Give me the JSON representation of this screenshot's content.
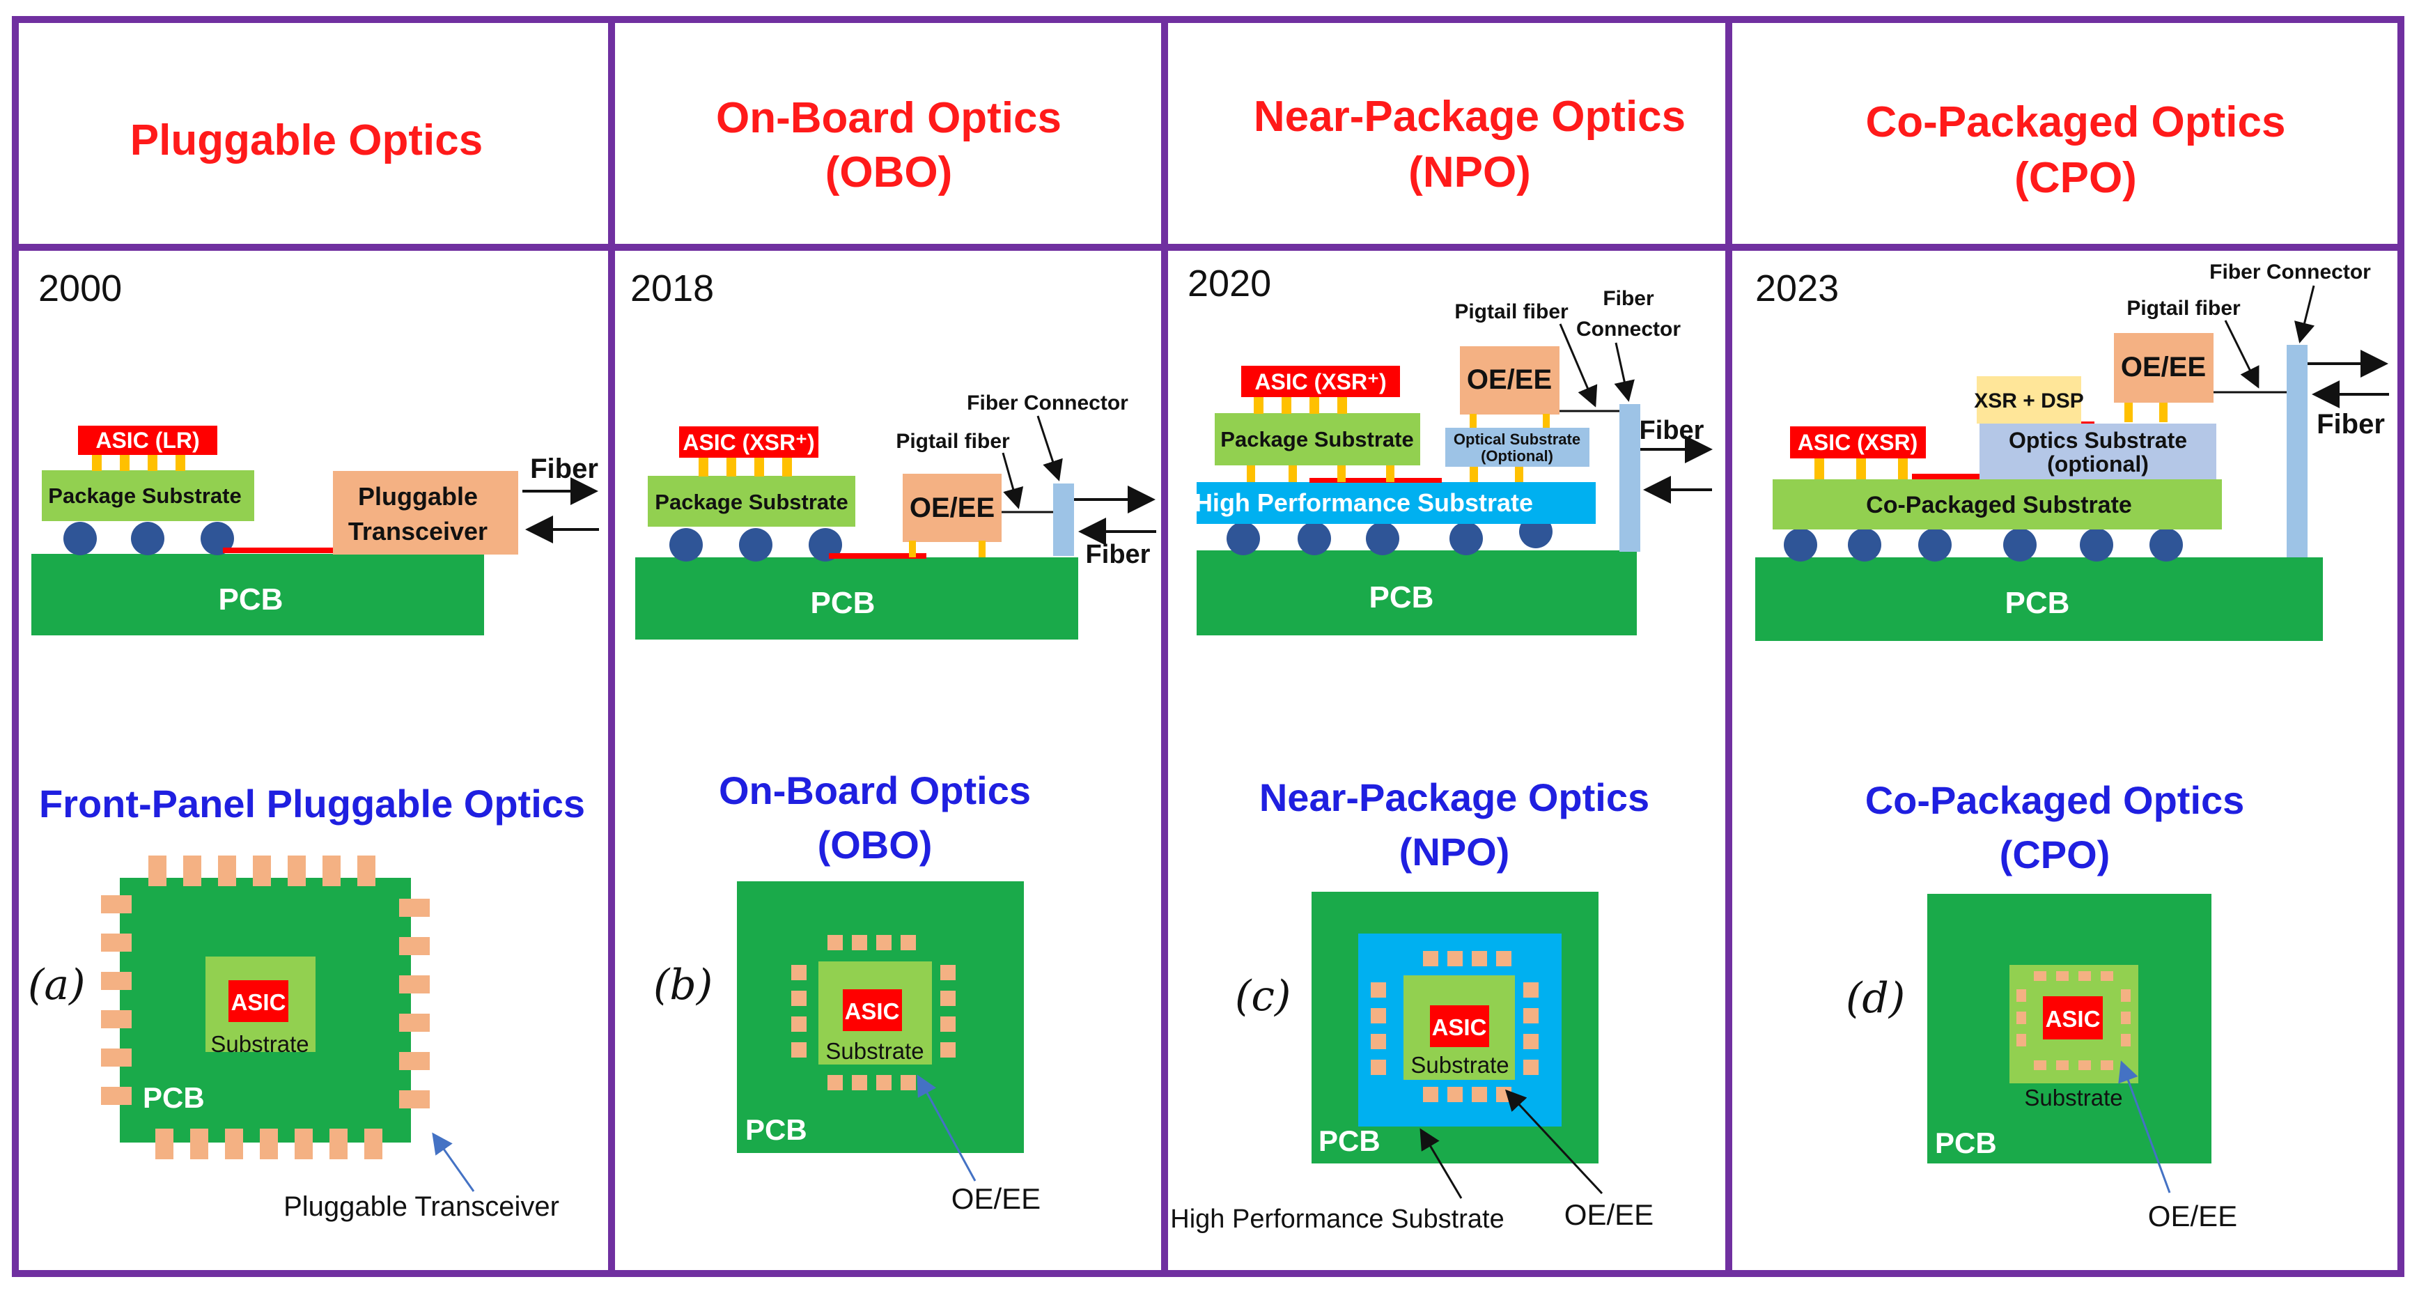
{
  "colors": {
    "frame": "#7030a0",
    "header_text": "#ff1a1a",
    "subtitle_text": "#1f1fe0",
    "pcb": "#1aaa4a",
    "package_substrate": "#92d050",
    "asic": "#ff0000",
    "oe_ee": "#f4b183",
    "high_perf_substrate": "#00b0f0",
    "optical_substrate": "#9dc3e6",
    "xsr_dsp": "#ffe699",
    "solder_ball": "#2f5597",
    "bump": "#ffc000"
  },
  "panels": [
    {
      "header": "Pluggable Optics",
      "year": "2000",
      "cross_section": {
        "asic": "ASIC (LR)",
        "substrate": "Package  Substrate",
        "transceiver": [
          "Pluggable",
          "Transceiver"
        ],
        "fiber": "Fiber",
        "pcb": "PCB"
      },
      "subtitle": "Front-Panel Pluggable Optics",
      "label": "(a)",
      "top_view": {
        "asic": "ASIC",
        "substrate": "Substrate",
        "pcb": "PCB",
        "callout": "Pluggable Transceiver"
      }
    },
    {
      "header": [
        "On-Board Optics",
        "(OBO)"
      ],
      "year": "2018",
      "cross_section": {
        "asic": "ASIC (XSR⁺)",
        "substrate": "Package  Substrate",
        "oe_ee": "OE/EE",
        "pigtail": "Pigtail  fiber",
        "connector": "Fiber Connector",
        "fiber": "Fiber",
        "pcb": "PCB"
      },
      "subtitle": [
        "On-Board Optics",
        "(OBO)"
      ],
      "label": "(b)",
      "top_view": {
        "asic": "ASIC",
        "substrate": "Substrate",
        "pcb": "PCB",
        "callout": "OE/EE"
      }
    },
    {
      "header": [
        "Near-Package  Optics",
        "(NPO)"
      ],
      "year": "2020",
      "cross_section": {
        "asic": "ASIC (XSR⁺)",
        "substrate": "Package  Substrate",
        "hps": "High Performance  Substrate",
        "optical": [
          "Optical Substrate",
          "(Optional)"
        ],
        "oe_ee": "OE/EE",
        "pigtail": "Pigtail  fiber",
        "connector": [
          "Fiber",
          "Connector"
        ],
        "fiber": "Fiber",
        "pcb": "PCB"
      },
      "subtitle": [
        "Near-Package Optics",
        "(NPO)"
      ],
      "label": "(c)",
      "top_view": {
        "asic": "ASIC",
        "substrate": "Substrate",
        "pcb": "PCB",
        "callout_left": "High Performance  Substrate",
        "callout_right": "OE/EE"
      }
    },
    {
      "header": [
        "Co-Packaged Optics",
        "(CPO)"
      ],
      "year": "2023",
      "cross_section": {
        "asic": "ASIC (XSR)",
        "xsr_dsp": "XSR + DSP",
        "optics_sub": [
          "Optics Substrate",
          "(optional)"
        ],
        "cps": "Co-Packaged Substrate",
        "oe_ee": "OE/EE",
        "pigtail": "Pigtail  fiber",
        "connector": "Fiber Connector",
        "fiber": "Fiber",
        "pcb": "PCB"
      },
      "subtitle": [
        "Co-Packaged Optics",
        "(CPO)"
      ],
      "label": "(d)",
      "top_view": {
        "asic": "ASIC",
        "substrate": "Substrate",
        "pcb": "PCB",
        "callout": "OE/EE"
      }
    }
  ]
}
